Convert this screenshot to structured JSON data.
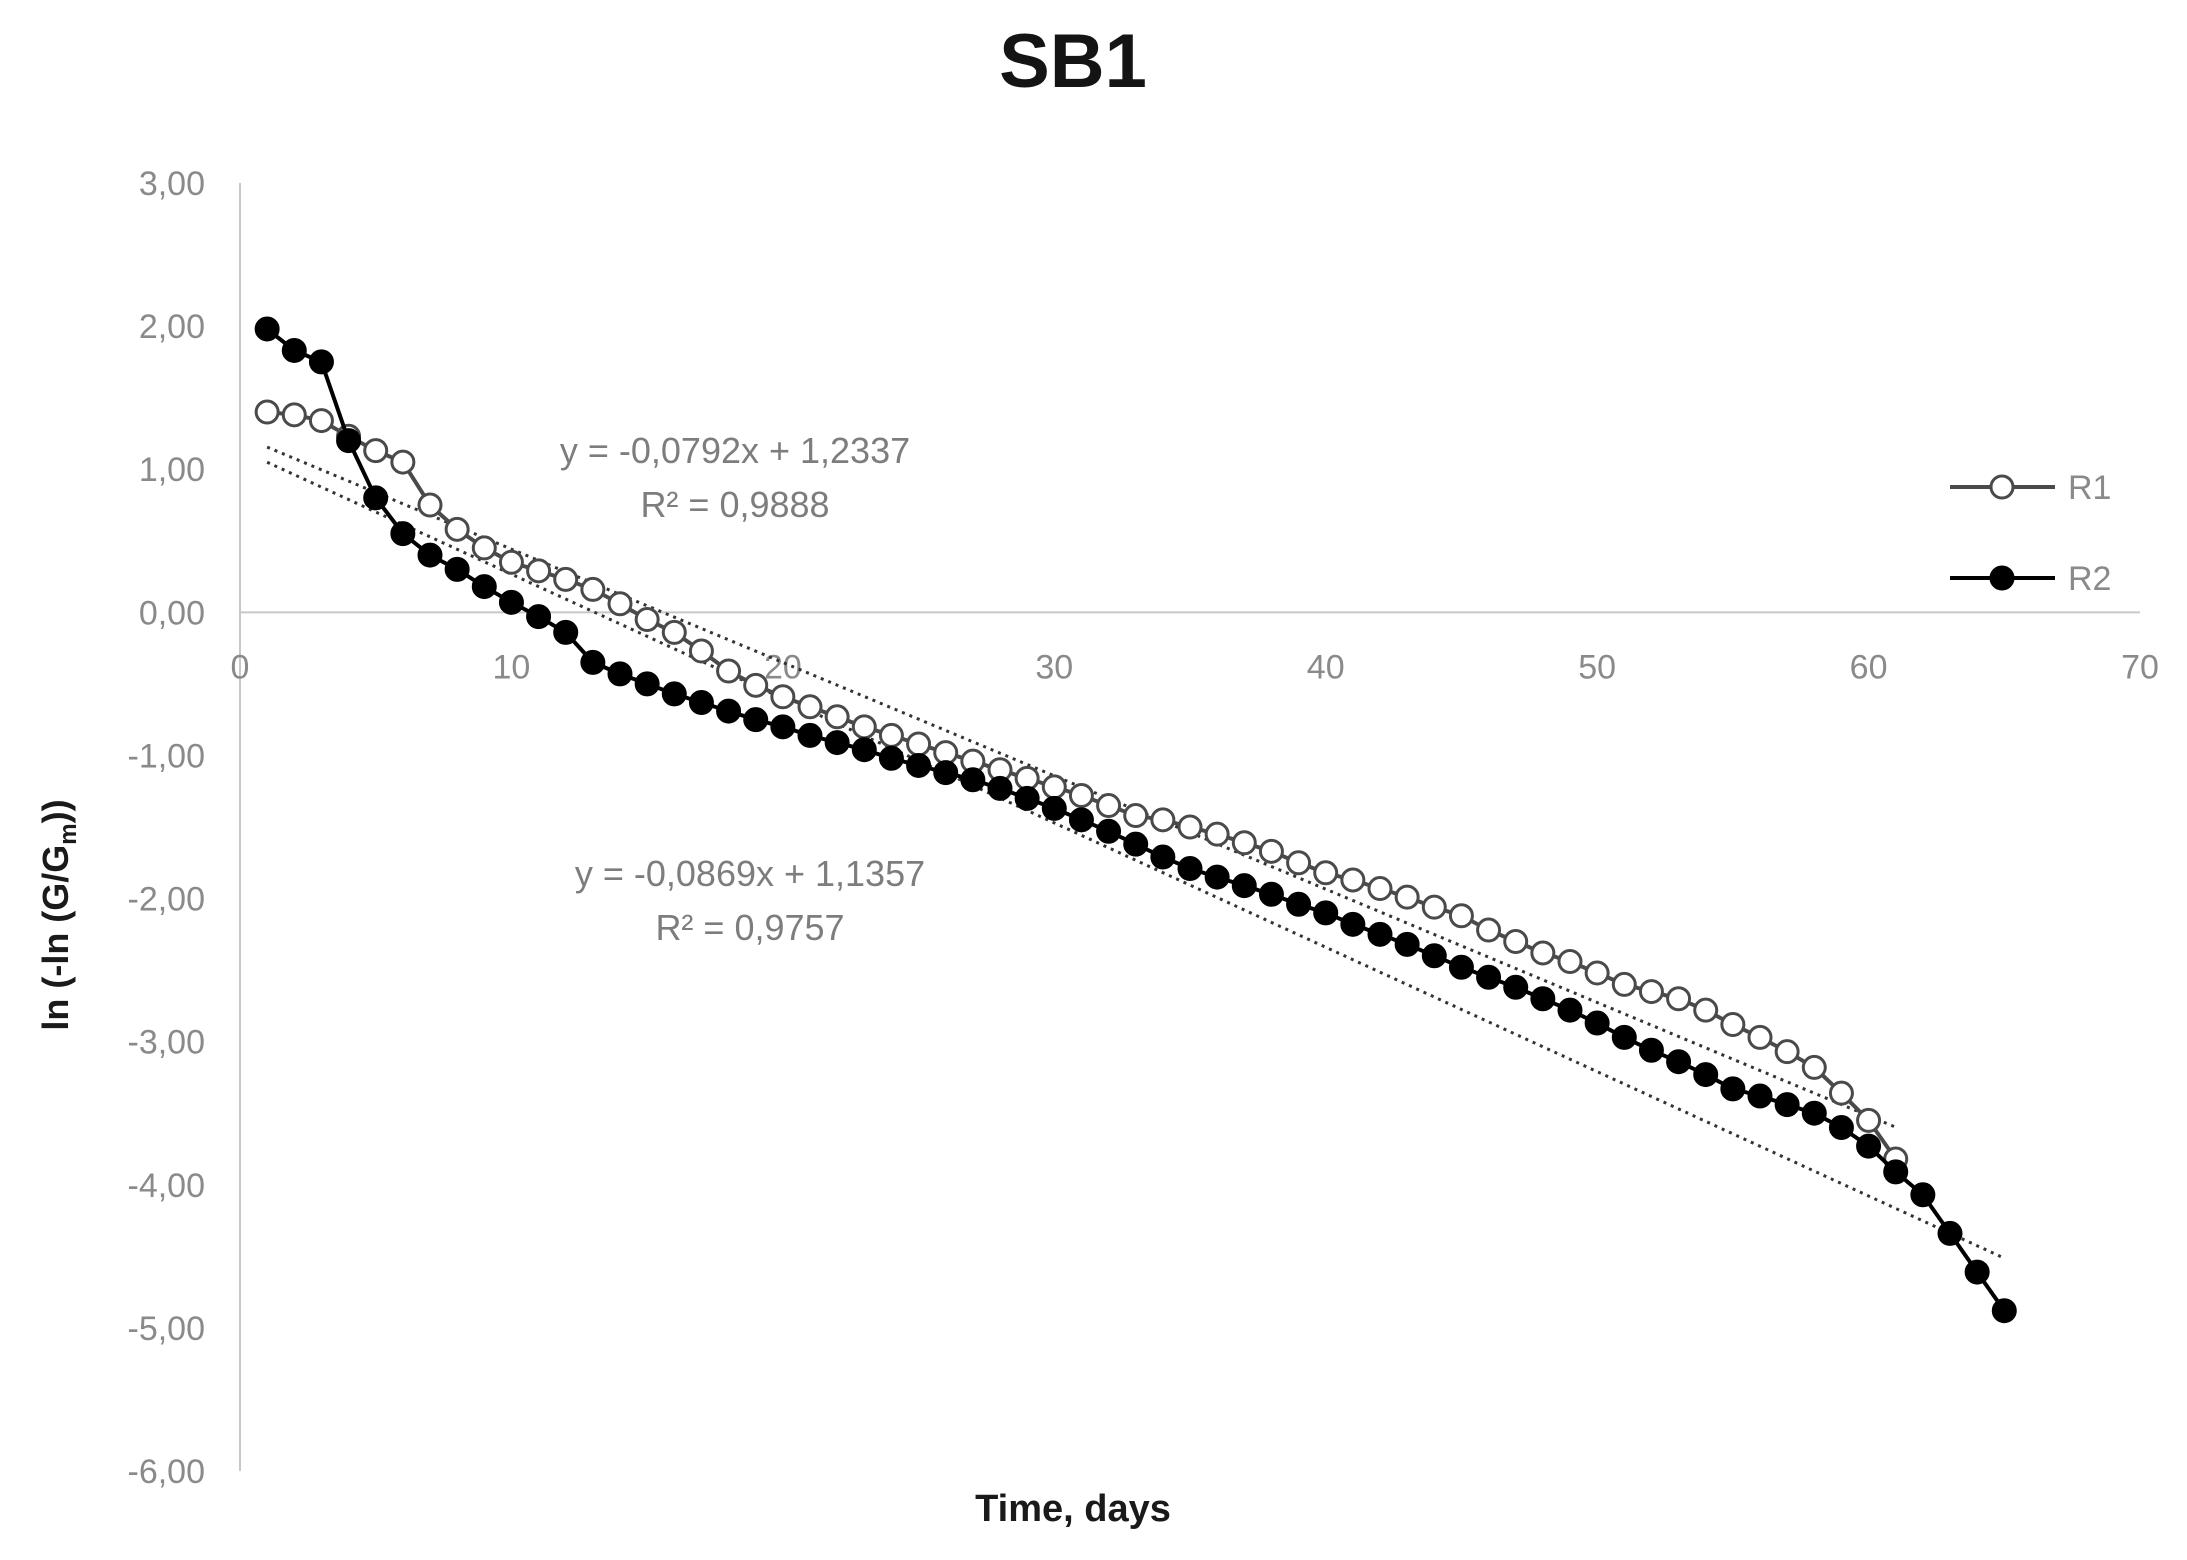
{
  "chart_data": {
    "type": "line",
    "title": "SB1",
    "xlabel": "Time, days",
    "ylabel": {
      "prefix": "ln (-ln (G/G",
      "sub": "m",
      "suffix": "))"
    },
    "xlim": [
      0,
      70
    ],
    "ylim": [
      -6,
      3
    ],
    "x_ticks": [
      0,
      10,
      20,
      30,
      40,
      50,
      60,
      70
    ],
    "y_ticks": [
      3,
      2,
      1,
      0,
      -1,
      -2,
      -3,
      -4,
      -5,
      -6
    ],
    "y_tick_labels": [
      "3,00",
      "2,00",
      "1,00",
      "0,00",
      "-1,00",
      "-2,00",
      "-3,00",
      "-4,00",
      "-5,00",
      "-6,00"
    ],
    "grid": false,
    "legend_position": "right",
    "series": [
      {
        "name": "R1",
        "marker": "open-circle",
        "color": "#4a4a4a",
        "x": [
          1,
          2,
          3,
          4,
          5,
          6,
          7,
          8,
          9,
          10,
          11,
          12,
          13,
          14,
          15,
          16,
          17,
          18,
          19,
          20,
          21,
          22,
          23,
          24,
          25,
          26,
          27,
          28,
          29,
          30,
          31,
          32,
          33,
          34,
          35,
          36,
          37,
          38,
          39,
          40,
          41,
          42,
          43,
          44,
          45,
          46,
          47,
          48,
          49,
          50,
          51,
          52,
          53,
          54,
          55,
          56,
          57,
          58,
          59,
          60,
          61
        ],
        "y": [
          1.4,
          1.38,
          1.34,
          1.23,
          1.13,
          1.05,
          0.75,
          0.58,
          0.45,
          0.35,
          0.29,
          0.23,
          0.16,
          0.06,
          -0.05,
          -0.14,
          -0.27,
          -0.41,
          -0.51,
          -0.59,
          -0.66,
          -0.73,
          -0.8,
          -0.86,
          -0.92,
          -0.98,
          -1.04,
          -1.1,
          -1.16,
          -1.22,
          -1.28,
          -1.35,
          -1.42,
          -1.45,
          -1.5,
          -1.55,
          -1.61,
          -1.67,
          -1.75,
          -1.82,
          -1.87,
          -1.93,
          -1.99,
          -2.06,
          -2.12,
          -2.22,
          -2.3,
          -2.38,
          -2.44,
          -2.52,
          -2.6,
          -2.65,
          -2.7,
          -2.78,
          -2.88,
          -2.97,
          -3.07,
          -3.18,
          -3.36,
          -3.55,
          -3.82
        ]
      },
      {
        "name": "R2",
        "marker": "filled-circle",
        "color": "#000000",
        "x": [
          1,
          2,
          3,
          4,
          5,
          6,
          7,
          8,
          9,
          10,
          11,
          12,
          13,
          14,
          15,
          16,
          17,
          18,
          19,
          20,
          21,
          22,
          23,
          24,
          25,
          26,
          27,
          28,
          29,
          30,
          31,
          32,
          33,
          34,
          35,
          36,
          37,
          38,
          39,
          40,
          41,
          42,
          43,
          44,
          45,
          46,
          47,
          48,
          49,
          50,
          51,
          52,
          53,
          54,
          55,
          56,
          57,
          58,
          59,
          60,
          61,
          62,
          63,
          64,
          65
        ],
        "y": [
          1.98,
          1.83,
          1.75,
          1.2,
          0.8,
          0.55,
          0.4,
          0.3,
          0.18,
          0.07,
          -0.03,
          -0.14,
          -0.35,
          -0.43,
          -0.5,
          -0.57,
          -0.63,
          -0.69,
          -0.75,
          -0.8,
          -0.86,
          -0.91,
          -0.96,
          -1.02,
          -1.07,
          -1.12,
          -1.17,
          -1.23,
          -1.3,
          -1.37,
          -1.45,
          -1.53,
          -1.62,
          -1.71,
          -1.79,
          -1.85,
          -1.91,
          -1.97,
          -2.04,
          -2.1,
          -2.18,
          -2.25,
          -2.32,
          -2.4,
          -2.48,
          -2.55,
          -2.62,
          -2.7,
          -2.78,
          -2.87,
          -2.97,
          -3.06,
          -3.14,
          -3.23,
          -3.33,
          -3.38,
          -3.44,
          -3.5,
          -3.6,
          -3.73,
          -3.91,
          -4.07,
          -4.34,
          -4.61,
          -4.88
        ]
      }
    ],
    "trendlines": [
      {
        "series": "R1",
        "slope": -0.0792,
        "intercept": 1.2337,
        "x_range": [
          1,
          61
        ],
        "equation": "y = -0,0792x + 1,2337",
        "r2": "R² = 0,9888"
      },
      {
        "series": "R2",
        "slope": -0.0869,
        "intercept": 1.1357,
        "x_range": [
          1,
          65
        ],
        "equation": "y = -0,0869x + 1,1357",
        "r2": "R² = 0,9757"
      }
    ]
  }
}
